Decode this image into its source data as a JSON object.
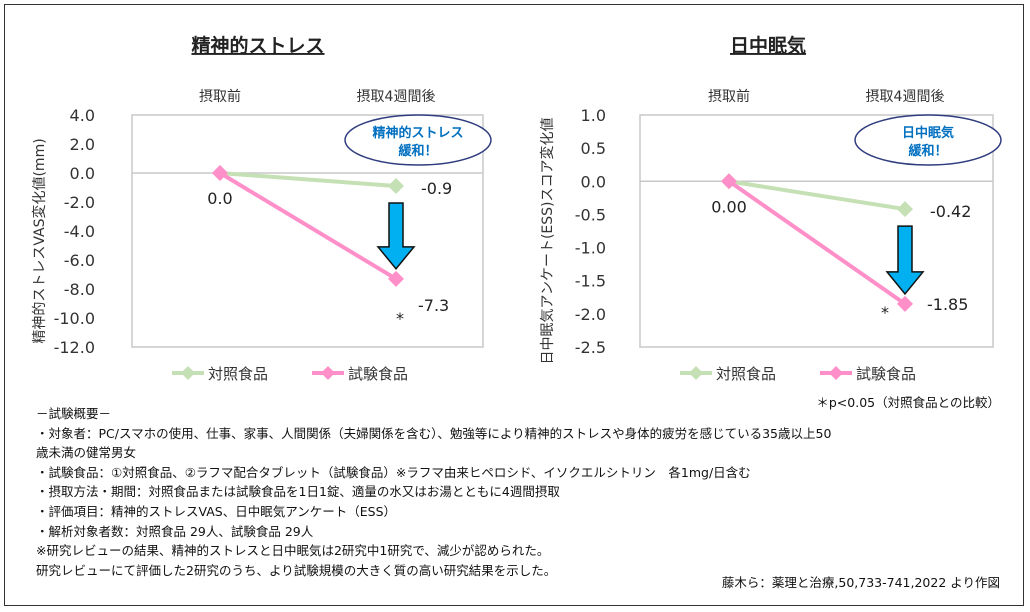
{
  "chart_data": [
    {
      "type": "line",
      "title": "精神的ストレス",
      "ylabel": "精神的ストレスVAS変化値(mm)",
      "categories": [
        "摂取前",
        "摂取4週間後"
      ],
      "ylim": [
        -12,
        4
      ],
      "yticks": [
        "4.0",
        "2.0",
        "0.0",
        "-2.0",
        "-4.0",
        "-6.0",
        "-8.0",
        "-10.0",
        "-12.0"
      ],
      "ytick_values": [
        4,
        2,
        0,
        -2,
        -4,
        -6,
        -8,
        -10,
        -12
      ],
      "series": [
        {
          "name": "対照食品",
          "values": [
            0,
            -0.9
          ],
          "color": "#c5e0b4"
        },
        {
          "name": "試験食品",
          "values": [
            0,
            -7.3
          ],
          "color": "#ff8fc8"
        }
      ],
      "data_labels": {
        "start": "0.0",
        "control_end": "-0.9",
        "test_end": "-7.3"
      },
      "significance_mark": "*",
      "callout": {
        "line1": "精神的ストレス",
        "line2": "緩和！"
      },
      "legend": "bottom"
    },
    {
      "type": "line",
      "title": "日中眠気",
      "ylabel": "日中眠気アンケート(ESS)スコア変化値",
      "categories": [
        "摂取前",
        "摂取4週間後"
      ],
      "ylim": [
        -2.5,
        1.0
      ],
      "yticks": [
        "1.0",
        "0.5",
        "0.0",
        "-0.5",
        "-1.0",
        "-1.5",
        "-2.0",
        "-2.5"
      ],
      "ytick_values": [
        1,
        0.5,
        0,
        -0.5,
        -1,
        -1.5,
        -2,
        -2.5
      ],
      "series": [
        {
          "name": "対照食品",
          "values": [
            0,
            -0.42
          ],
          "color": "#c5e0b4"
        },
        {
          "name": "試験食品",
          "values": [
            0,
            -1.85
          ],
          "color": "#ff8fc8"
        }
      ],
      "data_labels": {
        "start": "0.00",
        "control_end": "-0.42",
        "test_end": "-1.85"
      },
      "significance_mark": "*",
      "callout": {
        "line1": "日中眠気",
        "line2": "緩和！"
      },
      "legend": "bottom"
    }
  ],
  "colors": {
    "arrow": "#00b0f0",
    "callout_text": "#0070c0",
    "callout_border": "#2f3c7e"
  },
  "pvalue_note": "＊p<0.05（対照食品との比較）",
  "notes": [
    "－試験概要－",
    "・対象者：PC/スマホの使用、仕事、家事、人間関係（夫婦関係を含む）、勉強等により精神的ストレスや身体的疲労を感じている35歳以上50",
    "歳未満の健常男女",
    "・試験食品：①対照食品、②ラフマ配合タブレット（試験食品）※ラフマ由来ヒペロシド、イソクエルシトリン　各1mg/日含む",
    "・摂取方法・期間：対照食品または試験食品を1日1錠、適量の水又はお湯とともに4週間摂取",
    "・評価項目：精神的ストレスVAS、日中眠気アンケート（ESS）",
    "・解析対象者数：対照食品 29人、試験食品 29人",
    "※研究レビューの結果、精神的ストレスと日中眠気は2研究中1研究で、減少が認められた。",
    "研究レビューにて評価した2研究のうち、より試験規模の大きく質の高い研究結果を示した。"
  ],
  "source": "藤木ら：薬理と治療,50,733-741,2022 より作図"
}
